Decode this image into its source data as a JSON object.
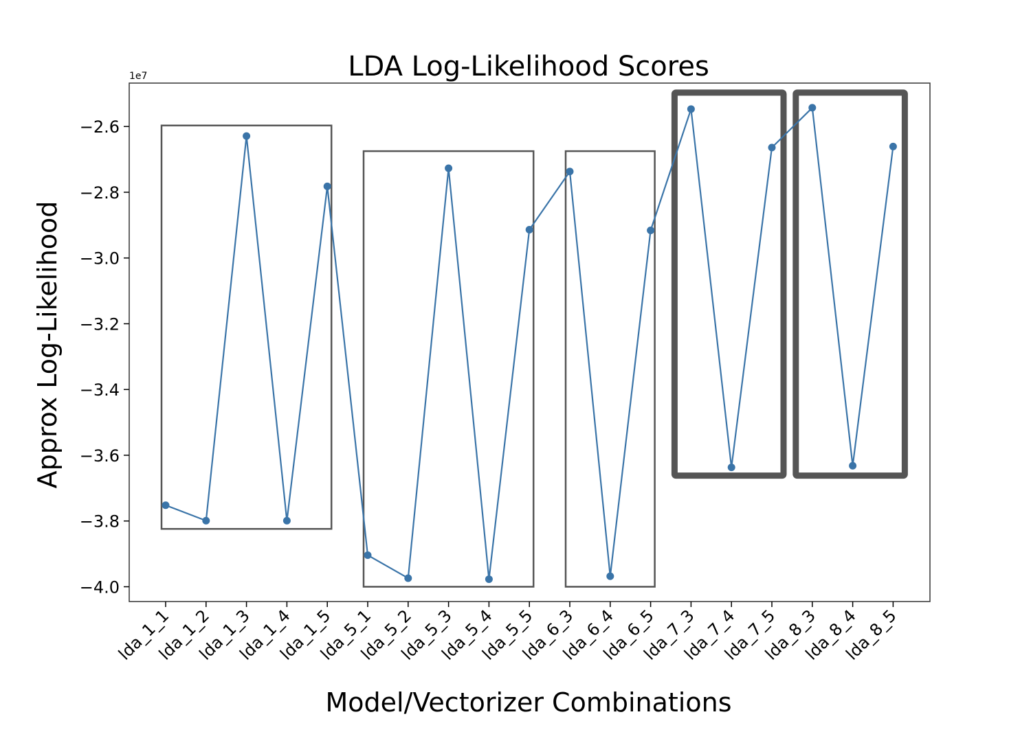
{
  "chart_data": {
    "type": "line",
    "title": "LDA Log-Likelihood Scores",
    "xlabel": "Model/Vectorizer Combinations",
    "ylabel": "Approx Log-Likelihood",
    "y_multiplier_label": "1e7",
    "ylim": [
      -4.045,
      -2.468
    ],
    "yticks": [
      -2.6,
      -2.8,
      -3.0,
      -3.2,
      -3.4,
      -3.6,
      -3.8,
      -4.0
    ],
    "ytick_labels": [
      "−2.6",
      "−2.8",
      "−3.0",
      "−3.2",
      "−3.4",
      "−3.6",
      "−3.8",
      "−4.0"
    ],
    "categories": [
      "lda_1_1",
      "lda_1_2",
      "lda_1_3",
      "lda_1_4",
      "lda_1_5",
      "lda_5_1",
      "lda_5_2",
      "lda_5_3",
      "lda_5_4",
      "lda_5_5",
      "lda_6_3",
      "lda_6_4",
      "lda_6_5",
      "lda_7_3",
      "lda_7_4",
      "lda_7_5",
      "lda_8_3",
      "lda_8_4",
      "lda_8_5"
    ],
    "series": [
      {
        "values": [
          -3.752,
          -3.799,
          -2.629,
          -3.799,
          -2.782,
          -3.904,
          -3.974,
          -2.727,
          -3.977,
          -2.914,
          -2.737,
          -3.968,
          -2.916,
          -2.547,
          -3.637,
          -2.664,
          -2.543,
          -3.632,
          -2.661
        ],
        "color": "#3a74a8"
      }
    ],
    "grid": false,
    "annotations": [
      {
        "type": "box",
        "from": "lda_1_1",
        "to": "lda_1_5",
        "y_top": -2.597,
        "y_bottom": -3.824,
        "weight": "thin"
      },
      {
        "type": "box",
        "from": "lda_5_1",
        "to": "lda_5_5",
        "y_top": -2.675,
        "y_bottom": -4.0,
        "weight": "thin"
      },
      {
        "type": "box",
        "from": "lda_6_3",
        "to": "lda_6_5",
        "y_top": -2.675,
        "y_bottom": -4.0,
        "weight": "thin"
      },
      {
        "type": "box",
        "from": "lda_7_3",
        "to": "lda_7_5",
        "y_top": -2.497,
        "y_bottom": -3.662,
        "weight": "thick"
      },
      {
        "type": "box",
        "from": "lda_8_3",
        "to": "lda_8_5",
        "y_top": -2.497,
        "y_bottom": -3.662,
        "weight": "thick"
      }
    ],
    "box_color": "#555555"
  }
}
